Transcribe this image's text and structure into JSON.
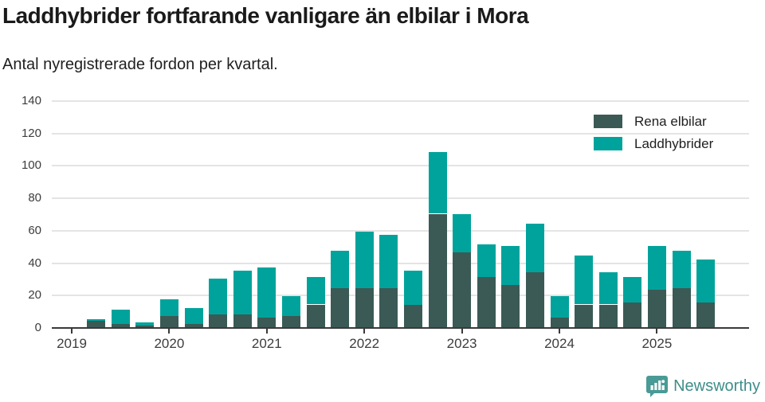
{
  "header": {
    "title": "Laddhybrider fortfarande vanligare än elbilar i Mora",
    "subtitle": "Antal nyregistrerade fordon per kvartal."
  },
  "legend": {
    "items": [
      {
        "label": "Rena elbilar",
        "color": "#3b5a55"
      },
      {
        "label": "Laddhybrider",
        "color": "#00a39b"
      }
    ]
  },
  "footer": {
    "brand": "Newsworthy"
  },
  "colors": {
    "elbilar": "#3b5a55",
    "laddhybrider": "#00a39b",
    "axis": "#3a3a3a",
    "gridline": "#e4e4e4",
    "text": "#3c3c3c",
    "logo": "#4a9a96",
    "brand_text": "#3e8e8a"
  },
  "chart_data": {
    "type": "bar",
    "stacked": true,
    "title": "Laddhybrider fortfarande vanligare än elbilar i Mora",
    "subtitle": "Antal nyregistrerade fordon per kvartal.",
    "xlabel": "",
    "ylabel": "",
    "ylim": [
      0,
      140
    ],
    "ytick_step": 20,
    "grid": "horizontal",
    "legend_position": "top-right",
    "categories": [
      "2019-Q2",
      "2019-Q3",
      "2019-Q4",
      "2020-Q1",
      "2020-Q2",
      "2020-Q3",
      "2020-Q4",
      "2021-Q1",
      "2021-Q2",
      "2021-Q3",
      "2021-Q4",
      "2022-Q1",
      "2022-Q2",
      "2022-Q3",
      "2022-Q4",
      "2023-Q1",
      "2023-Q2",
      "2023-Q3",
      "2023-Q4",
      "2024-Q1",
      "2024-Q2",
      "2024-Q3",
      "2024-Q4",
      "2025-Q1",
      "2025-Q2",
      "2025-Q3"
    ],
    "series": [
      {
        "name": "Rena elbilar",
        "color": "#3b5a55",
        "values": [
          4,
          2,
          1,
          7,
          2,
          8,
          8,
          6,
          7,
          14,
          24,
          24,
          24,
          14,
          70,
          46,
          31,
          26,
          34,
          6,
          14,
          14,
          15,
          23,
          24,
          15
        ]
      },
      {
        "name": "Laddhybrider",
        "color": "#00a39b",
        "values": [
          1,
          9,
          2,
          10,
          10,
          22,
          27,
          31,
          12,
          17,
          23,
          35,
          33,
          21,
          38,
          24,
          20,
          24,
          30,
          13,
          30,
          20,
          16,
          27,
          23,
          27
        ]
      }
    ],
    "xtick_labels": [
      "2019",
      "2020",
      "2021",
      "2022",
      "2023",
      "2024",
      "2025"
    ]
  }
}
